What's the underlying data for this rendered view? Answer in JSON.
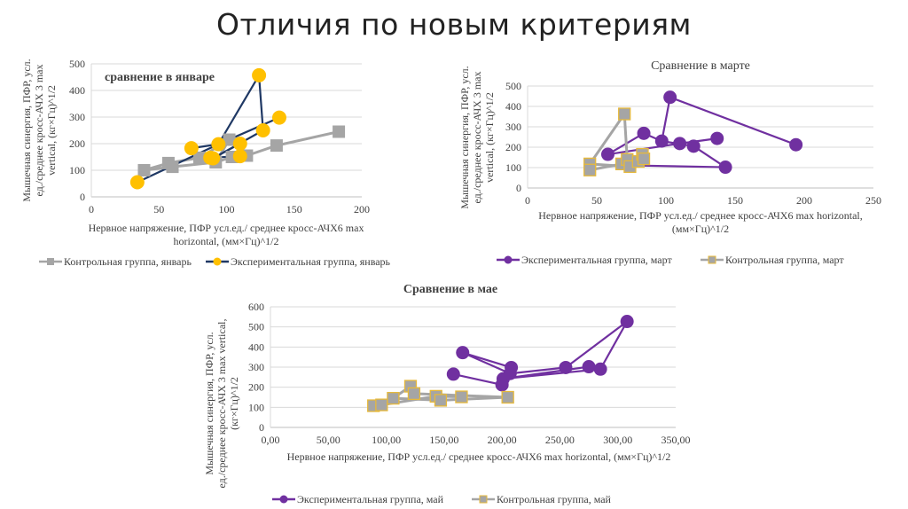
{
  "slide": {
    "title": "Отличия по новым критериям"
  },
  "colors": {
    "control_gray": "#A5A5A5",
    "exp_yellow": "#FFC000",
    "exp_navy_line": "#1F3864",
    "exp_purple": "#7030A0",
    "gold_border": "#E6B93C",
    "grid": "#D9D9D9",
    "axis_text": "#404040"
  },
  "chart_data": [
    {
      "id": "january",
      "type": "scatter",
      "title": "сравнение в январе",
      "title_placement": "inside-top-left",
      "xlabel": "Нервное напряжение, ПФР усл.ед./   среднее кросс-АЧХ6 max horizontal, (мм×Гц)^1/2",
      "xlabel_lines": [
        "Нервное напряжение, ПФР усл.ед./   среднее кросс-АЧХ6 max",
        "horizontal, (мм×Гц)^1/2"
      ],
      "ylabel_lines": [
        "Мышечная синергия, ПФР, усл.",
        "ед./среднее кросс-АЧХ 3 max",
        "vertical, (кг×Гц)^1/2"
      ],
      "xlim": [
        0,
        200
      ],
      "ylim": [
        0,
        500
      ],
      "xticks": [
        "0",
        "50",
        "100",
        "150",
        "200"
      ],
      "yticks": [
        "0",
        "100",
        "200",
        "300",
        "400",
        "500"
      ],
      "grid": true,
      "legend_placement": "bottom",
      "series": [
        {
          "name": "Контрольная группа, январь",
          "marker": "square",
          "color": "#A5A5A5",
          "line_color": "#A5A5A5",
          "points": [
            [
              39,
              100
            ],
            [
              57,
              127
            ],
            [
              60,
              113
            ],
            [
              80,
              147
            ],
            [
              92,
              130
            ],
            [
              102,
              215
            ],
            [
              104,
              150
            ],
            [
              115,
              155
            ],
            [
              137,
              193
            ],
            [
              183,
              245
            ]
          ],
          "path_order": [
            [
              39,
              100
            ],
            [
              57,
              127
            ],
            [
              80,
              147
            ],
            [
              102,
              215
            ],
            [
              92,
              130
            ],
            [
              60,
              113
            ],
            [
              39,
              100
            ]
          ],
          "path2": [
            [
              92,
              130
            ],
            [
              104,
              150
            ],
            [
              115,
              155
            ],
            [
              137,
              193
            ],
            [
              183,
              245
            ]
          ]
        },
        {
          "name": "Экспериментальная группа, январь",
          "marker": "circle",
          "color": "#FFC000",
          "line_color": "#1F3864",
          "points": [
            [
              34,
              55
            ],
            [
              74,
              183
            ],
            [
              88,
              147
            ],
            [
              90,
              145
            ],
            [
              94,
              198
            ],
            [
              110,
              200
            ],
            [
              110,
              153
            ],
            [
              124,
              457
            ],
            [
              127,
              250
            ],
            [
              139,
              298
            ]
          ],
          "path_order": [
            [
              34,
              55
            ],
            [
              94,
              198
            ],
            [
              139,
              298
            ]
          ],
          "path2": [
            [
              74,
              183
            ],
            [
              94,
              198
            ],
            [
              124,
              457
            ],
            [
              127,
              250
            ],
            [
              90,
              145
            ],
            [
              110,
              200
            ]
          ],
          "path3": [
            [
              88,
              147
            ],
            [
              110,
              153
            ]
          ]
        }
      ]
    },
    {
      "id": "march",
      "type": "scatter",
      "title": "Сравнение в марте",
      "title_placement": "top",
      "xlabel": "Нервное напряжение, ПФР усл.ед./   среднее кросс-АЧХ6 max horizontal, (мм×Гц)^1/2",
      "xlabel_lines": [
        "Нервное напряжение, ПФР усл.ед./   среднее кросс-АЧХ6 max horizontal,",
        "(мм×Гц)^1/2"
      ],
      "ylabel_lines": [
        "Мышечная синергия, ПФР, усл.",
        "ед./среднее кросс-АЧХ 3 max",
        "vertical, (кг×Гц)^1/2"
      ],
      "xlim": [
        0,
        250
      ],
      "ylim": [
        0,
        500
      ],
      "xticks": [
        "0",
        "50",
        "100",
        "150",
        "200",
        "250"
      ],
      "yticks": [
        "0",
        "100",
        "200",
        "300",
        "400",
        "500"
      ],
      "grid": true,
      "legend_placement": "bottom",
      "series": [
        {
          "name": "Экспериментальная группа, март",
          "marker": "circle",
          "color": "#7030A0",
          "line_color": "#7030A0",
          "points": [
            [
              58,
              165
            ],
            [
              84,
              268
            ],
            [
              97,
              230
            ],
            [
              103,
              445
            ],
            [
              110,
              218
            ],
            [
              120,
              205
            ],
            [
              137,
              243
            ],
            [
              143,
              102
            ],
            [
              194,
              212
            ]
          ],
          "path_order": [
            [
              58,
              165
            ],
            [
              84,
              268
            ],
            [
              97,
              230
            ],
            [
              103,
              445
            ],
            [
              194,
              212
            ]
          ],
          "path2": [
            [
              58,
              165
            ],
            [
              110,
              218
            ],
            [
              137,
              243
            ]
          ],
          "path3": [
            [
              97,
              230
            ],
            [
              120,
              205
            ],
            [
              143,
              102
            ],
            [
              80,
              110
            ]
          ]
        },
        {
          "name": "Контрольная группа, март",
          "marker": "square",
          "color": "#A5A5A5",
          "line_color": "#A5A5A5",
          "marker_border": "#E6B93C",
          "points": [
            [
              45,
              118
            ],
            [
              45,
              88
            ],
            [
              70,
              363
            ],
            [
              68,
              118
            ],
            [
              72,
              140
            ],
            [
              74,
              105
            ],
            [
              80,
              130
            ],
            [
              83,
              165
            ],
            [
              84,
              143
            ]
          ],
          "path_order": [
            [
              45,
              118
            ],
            [
              70,
              363
            ],
            [
              72,
              140
            ]
          ],
          "path2": [
            [
              45,
              88
            ],
            [
              68,
              118
            ],
            [
              80,
              130
            ],
            [
              84,
              143
            ]
          ],
          "path3": [
            [
              45,
              118
            ],
            [
              74,
              105
            ]
          ]
        }
      ]
    },
    {
      "id": "may",
      "type": "scatter",
      "title": "Сравнение в мае",
      "title_placement": "top",
      "xlabel": "Нервное напряжение, ПФР усл.ед./   среднее кросс-АЧХ6 max horizontal, (мм×Гц)^1/2",
      "xlabel_lines": [
        "Нервное напряжение, ПФР усл.ед./   среднее кросс-АЧХ6 max horizontal, (мм×Гц)^1/2"
      ],
      "ylabel_lines": [
        "Мышечная синергия, ПФР, усл.",
        "ед./среднее кросс-АЧХ 3 max vertical,",
        "(кг×Гц)^1/2"
      ],
      "xlim": [
        0,
        350
      ],
      "ylim": [
        0,
        600
      ],
      "xticks": [
        "0,00",
        "50,00",
        "100,00",
        "150,00",
        "200,00",
        "250,00",
        "300,00",
        "350,00"
      ],
      "yticks": [
        "0",
        "100",
        "200",
        "300",
        "400",
        "500",
        "600"
      ],
      "grid": true,
      "legend_placement": "bottom",
      "series": [
        {
          "name": "Экспериментальная группа, май",
          "marker": "circle",
          "color": "#7030A0",
          "line_color": "#7030A0",
          "points": [
            [
              158,
              265
            ],
            [
              166,
              372
            ],
            [
              200,
              212
            ],
            [
              201,
              242
            ],
            [
              207,
              268
            ],
            [
              208,
              298
            ],
            [
              255,
              298
            ],
            [
              275,
              302
            ],
            [
              285,
              290
            ],
            [
              308,
              527
            ]
          ],
          "path_order": [
            [
              166,
              372
            ],
            [
              208,
              298
            ],
            [
              207,
              268
            ],
            [
              255,
              298
            ],
            [
              308,
              527
            ],
            [
              285,
              290
            ],
            [
              201,
              242
            ],
            [
              275,
              302
            ]
          ],
          "path2": [
            [
              158,
              265
            ],
            [
              200,
              212
            ]
          ],
          "path3": [
            [
              166,
              372
            ],
            [
              207,
              268
            ]
          ]
        },
        {
          "name": "Контрольная группа, май",
          "marker": "square",
          "color": "#A5A5A5",
          "line_color": "#A5A5A5",
          "marker_border": "#E6B93C",
          "points": [
            [
              89,
              108
            ],
            [
              96,
              112
            ],
            [
              106,
              145
            ],
            [
              121,
              205
            ],
            [
              124,
              168
            ],
            [
              143,
              155
            ],
            [
              147,
              135
            ],
            [
              165,
              152
            ],
            [
              205,
              150
            ]
          ],
          "path_order": [
            [
              89,
              108
            ],
            [
              106,
              145
            ],
            [
              121,
              205
            ],
            [
              124,
              168
            ],
            [
              205,
              150
            ]
          ],
          "path2": [
            [
              96,
              112
            ],
            [
              143,
              155
            ],
            [
              165,
              152
            ]
          ],
          "path3": [
            [
              106,
              145
            ],
            [
              147,
              135
            ],
            [
              205,
              150
            ]
          ]
        }
      ]
    }
  ]
}
